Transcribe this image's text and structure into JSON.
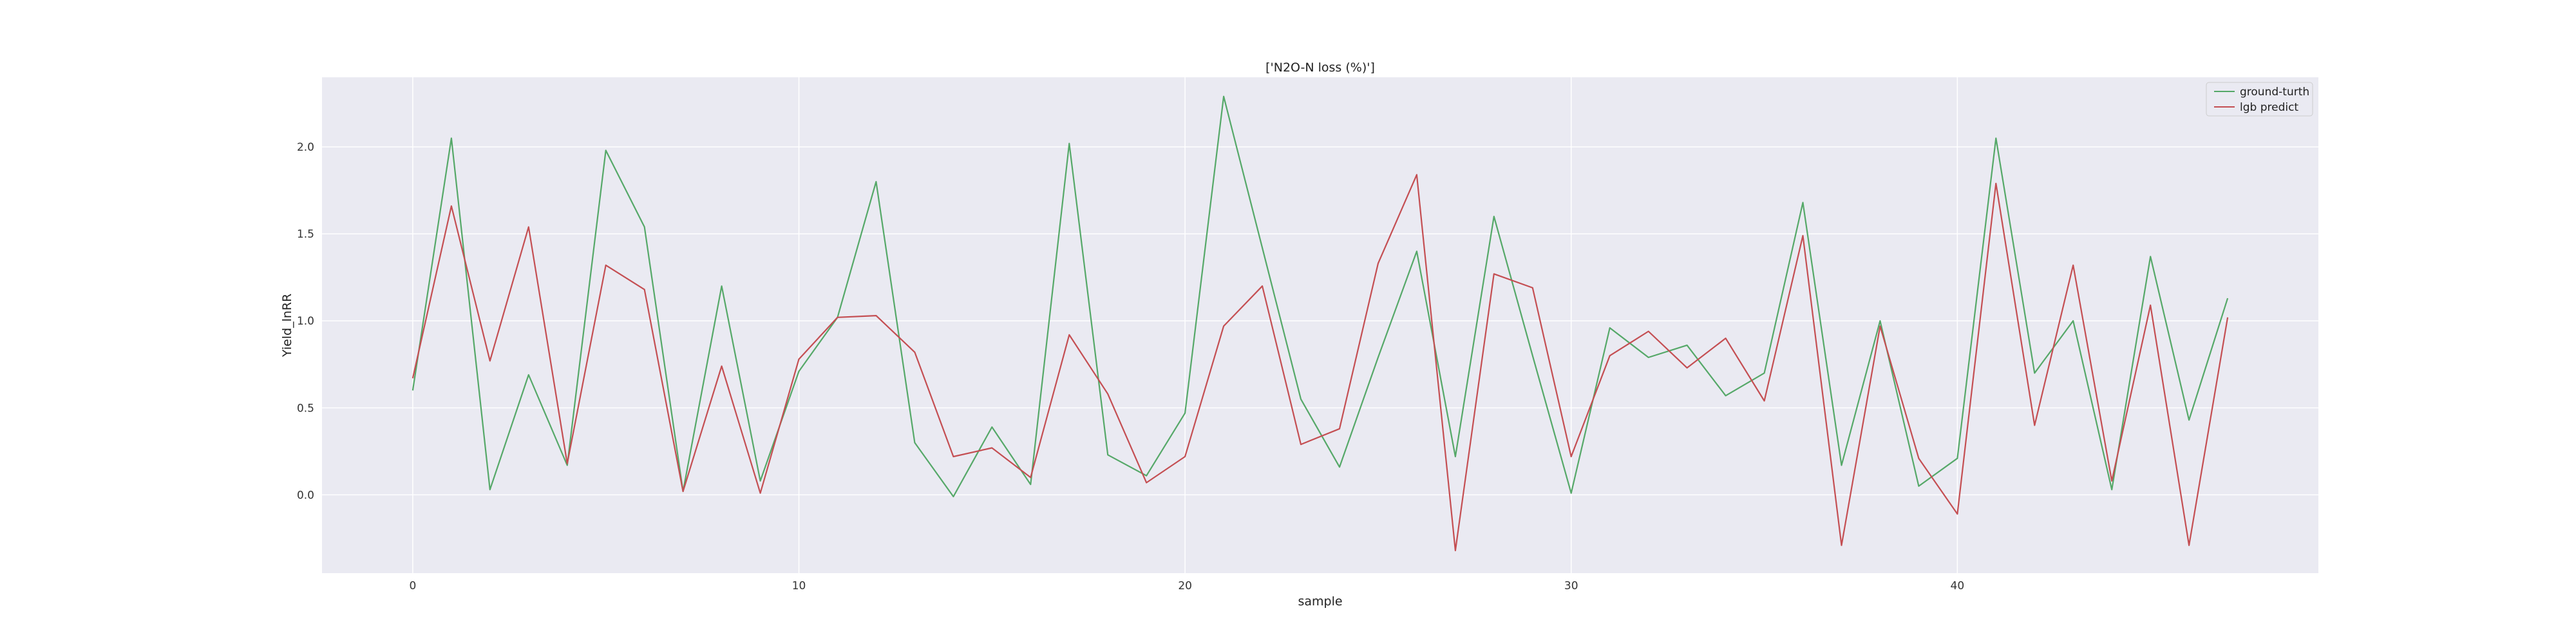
{
  "chart_data": {
    "type": "line",
    "title": "['N2O-N loss (%)']",
    "xlabel": "sample",
    "ylabel": "Yield_lnRR",
    "xlim": [
      -2.35,
      49.35
    ],
    "ylim": [
      -0.45,
      2.4
    ],
    "xticks": [
      0,
      10,
      20,
      30,
      40
    ],
    "yticks": [
      0.0,
      0.5,
      1.0,
      1.5,
      2.0
    ],
    "x_tick_labels": [
      "0",
      "10",
      "20",
      "30",
      "40"
    ],
    "y_tick_labels": [
      "0.0",
      "0.5",
      "1.0",
      "1.5",
      "2.0"
    ],
    "grid": true,
    "legend_position": "top-right",
    "x": [
      0,
      1,
      2,
      3,
      4,
      5,
      6,
      7,
      8,
      9,
      10,
      11,
      12,
      13,
      14,
      15,
      16,
      17,
      18,
      19,
      20,
      21,
      22,
      23,
      24,
      25,
      26,
      27,
      28,
      29,
      30,
      31,
      32,
      33,
      34,
      35,
      36,
      37,
      38,
      39,
      40,
      41,
      42,
      43,
      44,
      45,
      46,
      47
    ],
    "series": [
      {
        "name": "ground-turth",
        "color": "#55a868",
        "values": [
          0.6,
          2.05,
          0.03,
          0.69,
          0.17,
          1.98,
          1.54,
          0.02,
          1.2,
          0.08,
          0.71,
          1.02,
          1.8,
          0.3,
          -0.01,
          0.39,
          0.06,
          2.02,
          0.23,
          0.11,
          0.47,
          2.29,
          1.42,
          0.55,
          0.16,
          0.79,
          1.4,
          0.22,
          1.6,
          0.8,
          0.01,
          0.96,
          0.79,
          0.86,
          0.57,
          0.7,
          1.68,
          0.17,
          1.0,
          0.05,
          0.21,
          2.05,
          0.7,
          1.0,
          0.03,
          1.37,
          0.43,
          1.13
        ]
      },
      {
        "name": "lgb predict",
        "color": "#c44e52",
        "values": [
          0.67,
          1.66,
          0.77,
          1.54,
          0.18,
          1.32,
          1.18,
          0.02,
          0.74,
          0.01,
          0.78,
          1.02,
          1.03,
          0.82,
          0.22,
          0.27,
          0.1,
          0.92,
          0.58,
          0.07,
          0.22,
          0.97,
          1.2,
          0.29,
          0.38,
          1.33,
          1.84,
          -0.32,
          1.27,
          1.19,
          0.22,
          0.8,
          0.94,
          0.73,
          0.9,
          0.54,
          1.49,
          -0.29,
          0.97,
          0.21,
          -0.11,
          1.79,
          0.4,
          1.32,
          0.08,
          1.09,
          -0.29,
          1.02
        ]
      }
    ]
  }
}
